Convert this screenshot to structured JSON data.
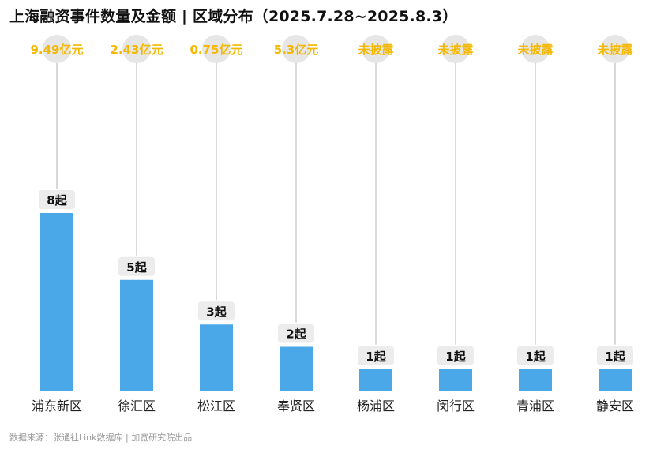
{
  "title": "上海融资事件数量及金额 | 区域分布（2025.7.28~2025.8.3）",
  "source": "数据来源：张通社Link数据库 | 加宽研究院出品",
  "colors": {
    "bar": "#4aa8e8",
    "amount_text": "#f5b800",
    "count_label_bg": "#ececec",
    "stem": "#d9d9d9",
    "circle": "#e6e6e6"
  },
  "chart_data": {
    "type": "bar",
    "categories": [
      "浦东新区",
      "徐汇区",
      "松江区",
      "奉贤区",
      "杨浦区",
      "闵行区",
      "青浦区",
      "静安区"
    ],
    "values": [
      8,
      5,
      3,
      2,
      1,
      1,
      1,
      1
    ],
    "value_labels": [
      "8起",
      "5起",
      "3起",
      "2起",
      "1起",
      "1起",
      "1起",
      "1起"
    ],
    "amount_labels": [
      "9.49亿元",
      "2.43亿元",
      "0.75亿元",
      "5.3亿元",
      "未披露",
      "未披露",
      "未披露",
      "未披露"
    ],
    "ylim": [
      0,
      8
    ],
    "grid": false,
    "legend": "none"
  }
}
